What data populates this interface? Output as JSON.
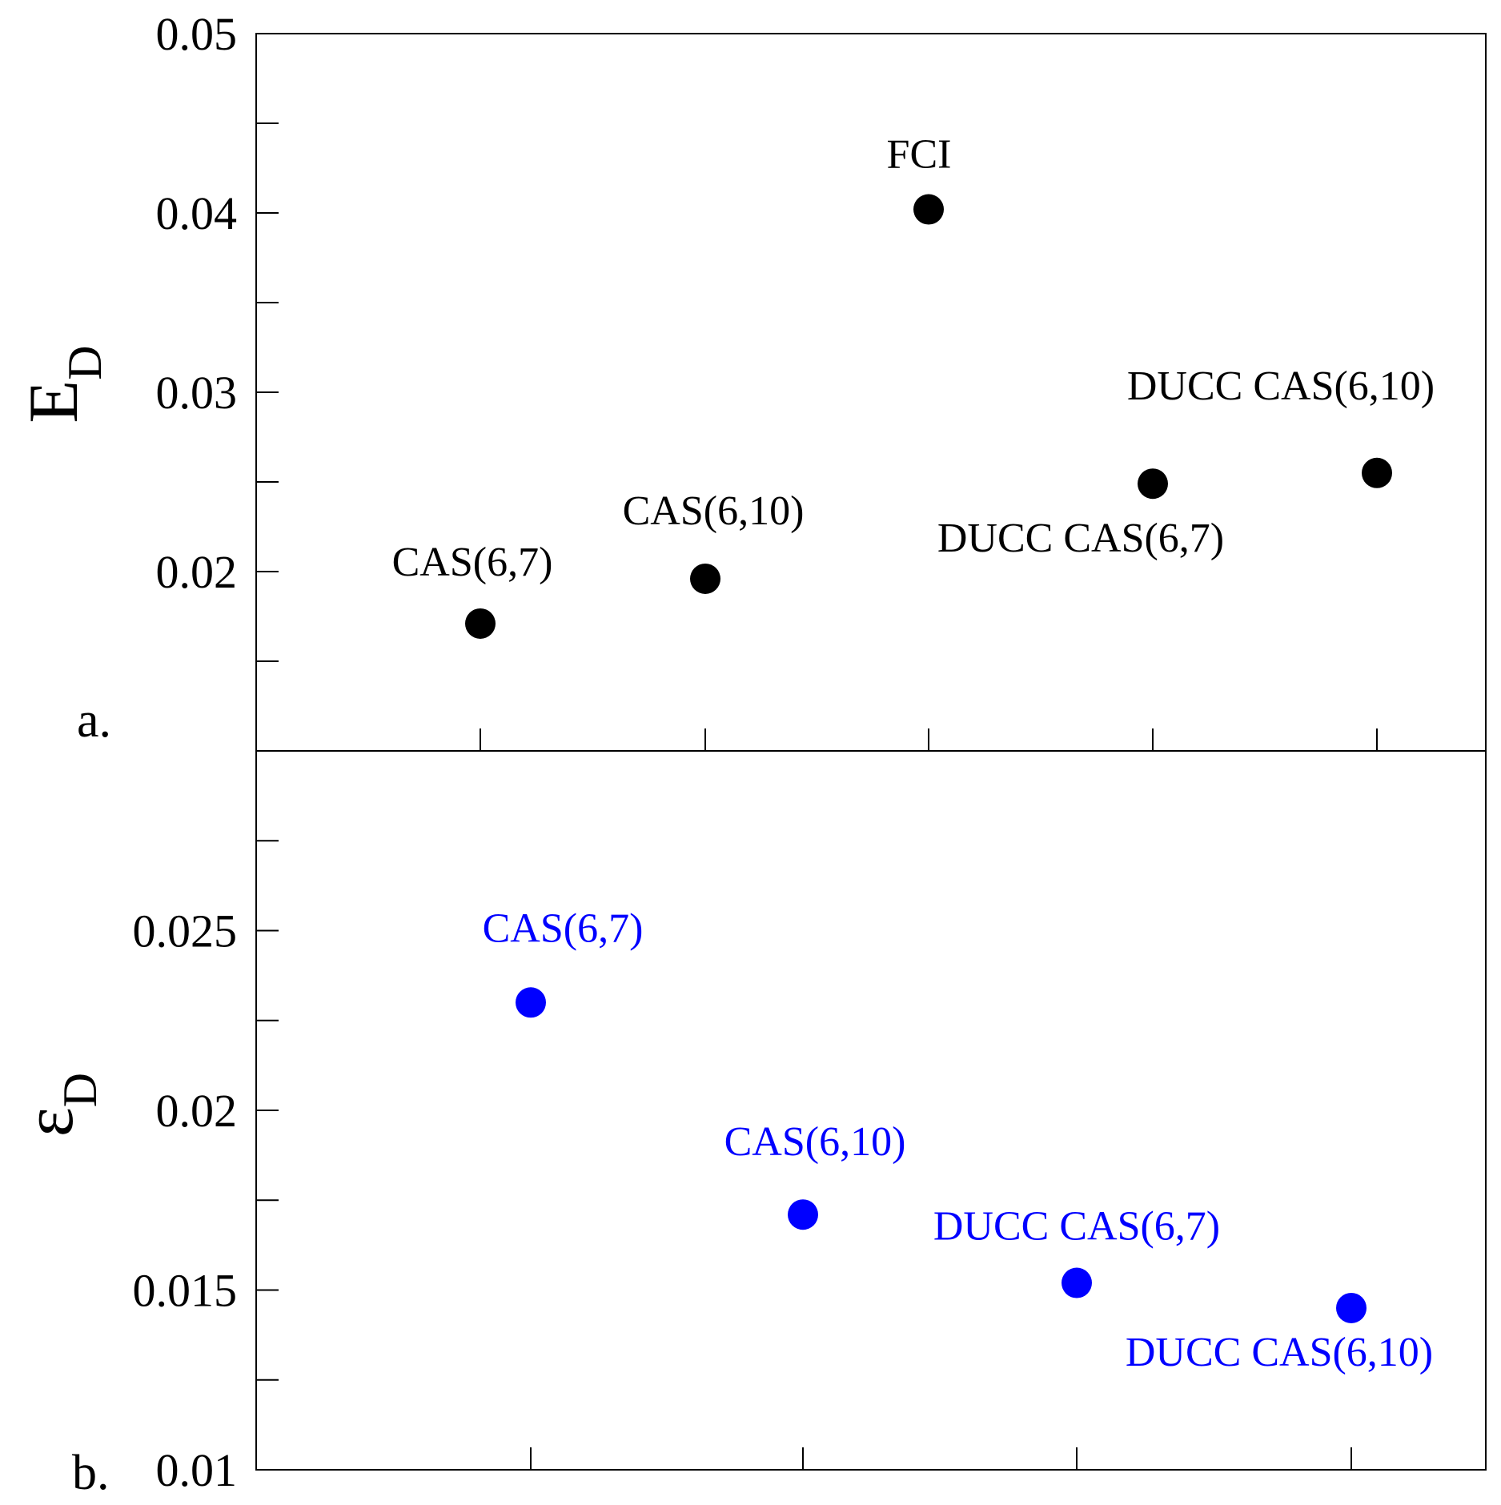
{
  "chart_data": [
    {
      "panel": "a.",
      "type": "scatter",
      "ylabel": "E",
      "ylabel_sub": "D",
      "ylim": [
        0.01,
        0.05
      ],
      "yticks": [
        "0.05",
        "0.04",
        "0.03",
        "0.02"
      ],
      "ytick_values": [
        0.05,
        0.04,
        0.03,
        0.02
      ],
      "marker_color": "#000000",
      "label_color": "#000000",
      "points": [
        {
          "label": "CAS(6,7)",
          "x": 1,
          "y": 0.0171
        },
        {
          "label": "CAS(6,10)",
          "x": 2,
          "y": 0.0196
        },
        {
          "label": "FCI",
          "x": 3,
          "y": 0.0402
        },
        {
          "label": "DUCC CAS(6,7)",
          "x": 4,
          "y": 0.0249
        },
        {
          "label": "DUCC CAS(6,10)",
          "x": 5,
          "y": 0.0255
        }
      ]
    },
    {
      "panel": "b.",
      "type": "scatter",
      "ylabel": "ε",
      "ylabel_sub": "D",
      "ylim": [
        0.01,
        0.03
      ],
      "yticks": [
        "0.025",
        "0.02",
        "0.015",
        "0.01"
      ],
      "ytick_values": [
        0.025,
        0.02,
        0.015,
        0.01
      ],
      "marker_color": "#0000ff",
      "label_color": "#0000ff",
      "points": [
        {
          "label": "CAS(6,7)",
          "x": 1,
          "y": 0.023
        },
        {
          "label": "CAS(6,10)",
          "x": 2,
          "y": 0.0171
        },
        {
          "label": "DUCC CAS(6,7)",
          "x": 3,
          "y": 0.0152
        },
        {
          "label": "DUCC CAS(6,10)",
          "x": 4,
          "y": 0.0145
        }
      ]
    }
  ]
}
